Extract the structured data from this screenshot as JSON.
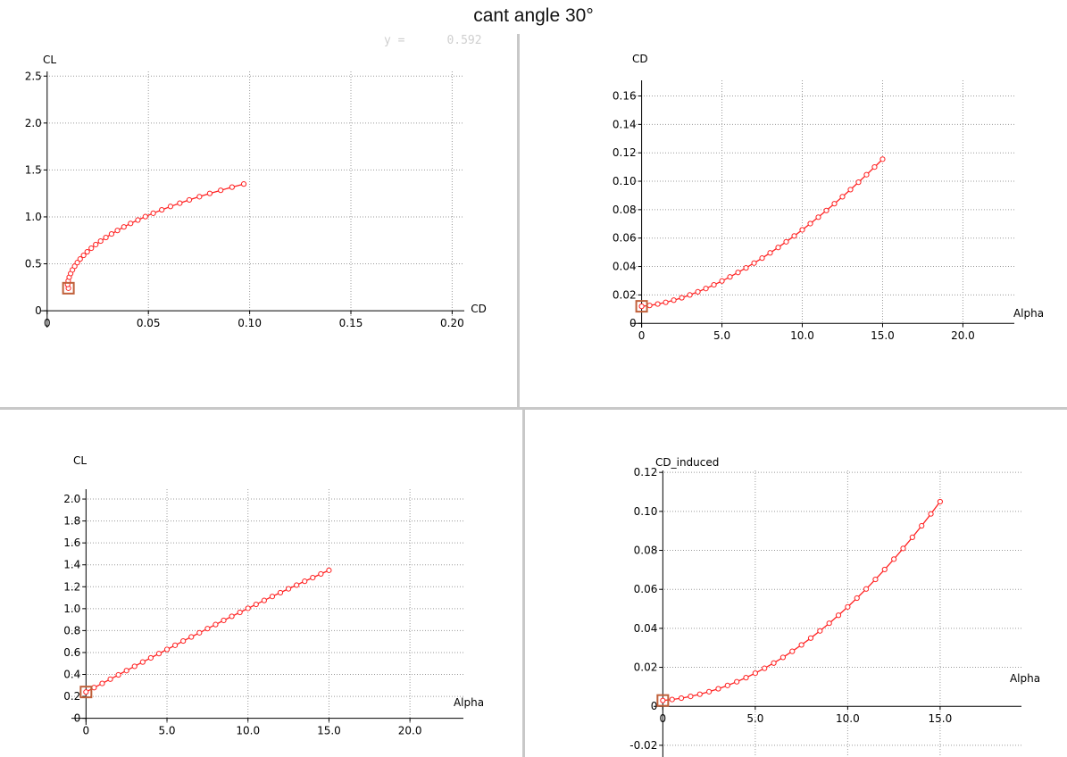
{
  "title": "cant angle 30°",
  "readout": {
    "label": "y =",
    "value": "0.592"
  },
  "colors": {
    "curve": "#ff2222",
    "marker": "#c0603a",
    "grid": "#9a9a9a",
    "axis": "#000000"
  },
  "chart_data": [
    {
      "type": "line",
      "xlabel": "CD",
      "ylabel": "CL",
      "xlim": [
        -0.003,
        0.206
      ],
      "ylim": [
        -0.18,
        2.55
      ],
      "xticks": [
        0,
        0.05,
        0.1,
        0.15,
        0.2
      ],
      "xtick_labels": [
        "0",
        "0.05",
        "0.10",
        "0.15",
        "0.20"
      ],
      "yticks": [
        0,
        0.5,
        1.0,
        1.5,
        2.0,
        2.5
      ],
      "ytick_labels": [
        "0",
        "0.5",
        "1.0",
        "1.5",
        "2.0",
        "2.5"
      ],
      "series": [
        {
          "x": [
            0.0105,
            0.0101,
            0.0104,
            0.0109,
            0.0116,
            0.0125,
            0.0136,
            0.0149,
            0.0163,
            0.018,
            0.0198,
            0.0218,
            0.024,
            0.0264,
            0.029,
            0.0318,
            0.0347,
            0.0379,
            0.0412,
            0.0448,
            0.0485,
            0.0524,
            0.0566,
            0.0609,
            0.0655,
            0.0702,
            0.0752,
            0.0803,
            0.0857,
            0.0913,
            0.0971
          ],
          "y": [
            0.24,
            0.28,
            0.318,
            0.357,
            0.396,
            0.435,
            0.474,
            0.513,
            0.551,
            0.59,
            0.628,
            0.666,
            0.705,
            0.742,
            0.78,
            0.818,
            0.855,
            0.893,
            0.93,
            0.966,
            1.003,
            1.039,
            1.075,
            1.111,
            1.146,
            1.181,
            1.215,
            1.25,
            1.283,
            1.317,
            1.35
          ]
        }
      ],
      "marker_point": {
        "x": 0.0105,
        "y": 0.24
      }
    },
    {
      "type": "line",
      "xlabel": "Alpha",
      "ylabel": "CD",
      "xlim": [
        -0.7,
        23.2
      ],
      "ylim": [
        -0.003,
        0.171
      ],
      "xticks": [
        0,
        5,
        10,
        15,
        20
      ],
      "xtick_labels": [
        "0",
        "5.0",
        "10.0",
        "15.0",
        "20.0"
      ],
      "yticks": [
        0,
        0.02,
        0.04,
        0.06,
        0.08,
        0.1,
        0.12,
        0.14,
        0.16
      ],
      "ytick_labels": [
        "0",
        "0.02",
        "0.04",
        "0.06",
        "0.08",
        "0.10",
        "0.12",
        "0.14",
        "0.16"
      ],
      "series": [
        {
          "x": [
            0,
            0.5,
            1,
            1.5,
            2,
            2.5,
            3,
            3.5,
            4,
            4.5,
            5,
            5.5,
            6,
            6.5,
            7,
            7.5,
            8,
            8.5,
            9,
            9.5,
            10,
            10.5,
            11,
            11.5,
            12,
            12.5,
            13,
            13.5,
            14,
            14.5,
            15
          ],
          "y": [
            0.012,
            0.0126,
            0.0136,
            0.0148,
            0.0163,
            0.018,
            0.02,
            0.0222,
            0.0245,
            0.0271,
            0.0298,
            0.0327,
            0.0358,
            0.039,
            0.0424,
            0.0459,
            0.0496,
            0.0534,
            0.0574,
            0.0615,
            0.0658,
            0.0702,
            0.0747,
            0.0794,
            0.0842,
            0.0891,
            0.0941,
            0.0993,
            0.1046,
            0.11,
            0.1155
          ]
        }
      ],
      "marker_point": {
        "x": 0,
        "y": 0.012
      }
    },
    {
      "type": "line",
      "xlabel": "Alpha",
      "ylabel": "CL",
      "xlim": [
        -0.9,
        23.3
      ],
      "ylim": [
        -0.06,
        2.09
      ],
      "xticks": [
        0,
        5,
        10,
        15,
        20
      ],
      "xtick_labels": [
        "0",
        "5.0",
        "10.0",
        "15.0",
        "20.0"
      ],
      "yticks": [
        0,
        0.2,
        0.4,
        0.6,
        0.8,
        1.0,
        1.2,
        1.4,
        1.6,
        1.8,
        2.0
      ],
      "ytick_labels": [
        "0",
        "0.2",
        "0.4",
        "0.6",
        "0.8",
        "1.0",
        "1.2",
        "1.4",
        "1.6",
        "1.8",
        "2.0"
      ],
      "series": [
        {
          "x": [
            0,
            0.5,
            1,
            1.5,
            2,
            2.5,
            3,
            3.5,
            4,
            4.5,
            5,
            5.5,
            6,
            6.5,
            7,
            7.5,
            8,
            8.5,
            9,
            9.5,
            10,
            10.5,
            11,
            11.5,
            12,
            12.5,
            13,
            13.5,
            14,
            14.5,
            15
          ],
          "y": [
            0.24,
            0.28,
            0.318,
            0.357,
            0.396,
            0.435,
            0.474,
            0.513,
            0.551,
            0.59,
            0.628,
            0.666,
            0.705,
            0.742,
            0.78,
            0.818,
            0.855,
            0.893,
            0.93,
            0.966,
            1.003,
            1.039,
            1.075,
            1.111,
            1.146,
            1.181,
            1.215,
            1.25,
            1.283,
            1.317,
            1.35
          ]
        }
      ],
      "marker_point": {
        "x": 0,
        "y": 0.24
      }
    },
    {
      "type": "line",
      "xlabel": "Alpha",
      "ylabel": "CD_induced",
      "xlim": [
        -0.5,
        19.4
      ],
      "ylim": [
        -0.026,
        0.121
      ],
      "xticks": [
        0,
        5,
        10,
        15
      ],
      "xtick_labels": [
        "0",
        "5.0",
        "10.0",
        "15.0"
      ],
      "yticks": [
        -0.02,
        0,
        0.02,
        0.04,
        0.06,
        0.08,
        0.1,
        0.12
      ],
      "ytick_labels": [
        "-0.02",
        "0",
        "0.02",
        "0.04",
        "0.06",
        "0.08",
        "0.10",
        "0.12"
      ],
      "series": [
        {
          "x": [
            0,
            0.5,
            1,
            1.5,
            2,
            2.5,
            3,
            3.5,
            4,
            4.5,
            5,
            5.5,
            6,
            6.5,
            7,
            7.5,
            8,
            8.5,
            9,
            9.5,
            10,
            10.5,
            11,
            11.5,
            12,
            12.5,
            13,
            13.5,
            14,
            14.5,
            15
          ],
          "y": [
            0.003,
            0.0035,
            0.0042,
            0.0051,
            0.0062,
            0.0075,
            0.009,
            0.0107,
            0.0126,
            0.0147,
            0.017,
            0.0195,
            0.0222,
            0.0251,
            0.0282,
            0.0315,
            0.035,
            0.0387,
            0.0426,
            0.0467,
            0.051,
            0.0555,
            0.0602,
            0.0651,
            0.0702,
            0.0755,
            0.081,
            0.0867,
            0.0926,
            0.0987,
            0.105
          ]
        }
      ],
      "marker_point": {
        "x": 0,
        "y": 0.003
      }
    }
  ]
}
